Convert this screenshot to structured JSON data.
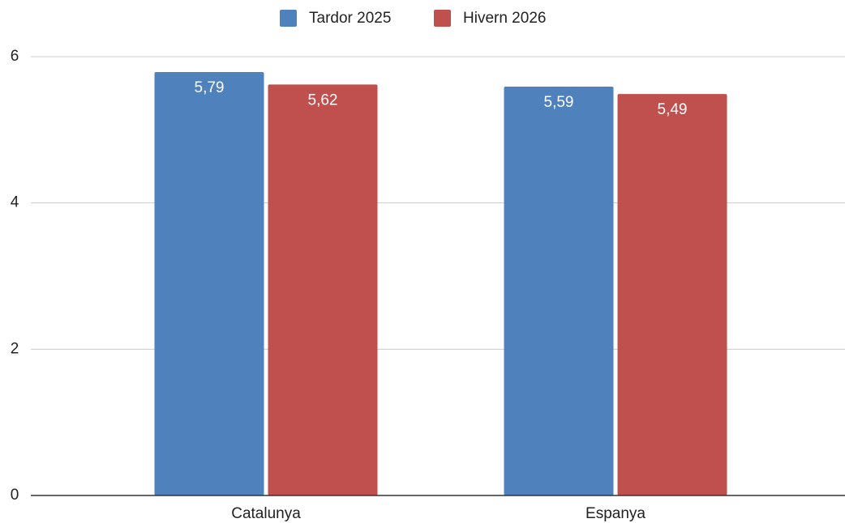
{
  "chart_data": {
    "type": "bar",
    "categories": [
      "Catalunya",
      "Espanya"
    ],
    "series": [
      {
        "name": "Tardor 2025",
        "color": "#4f81bd",
        "values": [
          5.79,
          5.59
        ],
        "value_labels": [
          "5,79",
          "5,59"
        ]
      },
      {
        "name": "Hivern 2026",
        "color": "#c0504d",
        "values": [
          5.62,
          5.49
        ],
        "value_labels": [
          "5,62",
          "5,49"
        ]
      }
    ],
    "ylim": [
      0,
      6
    ],
    "yticks": [
      0,
      2,
      4,
      6
    ],
    "grid": true,
    "legend": "top"
  }
}
